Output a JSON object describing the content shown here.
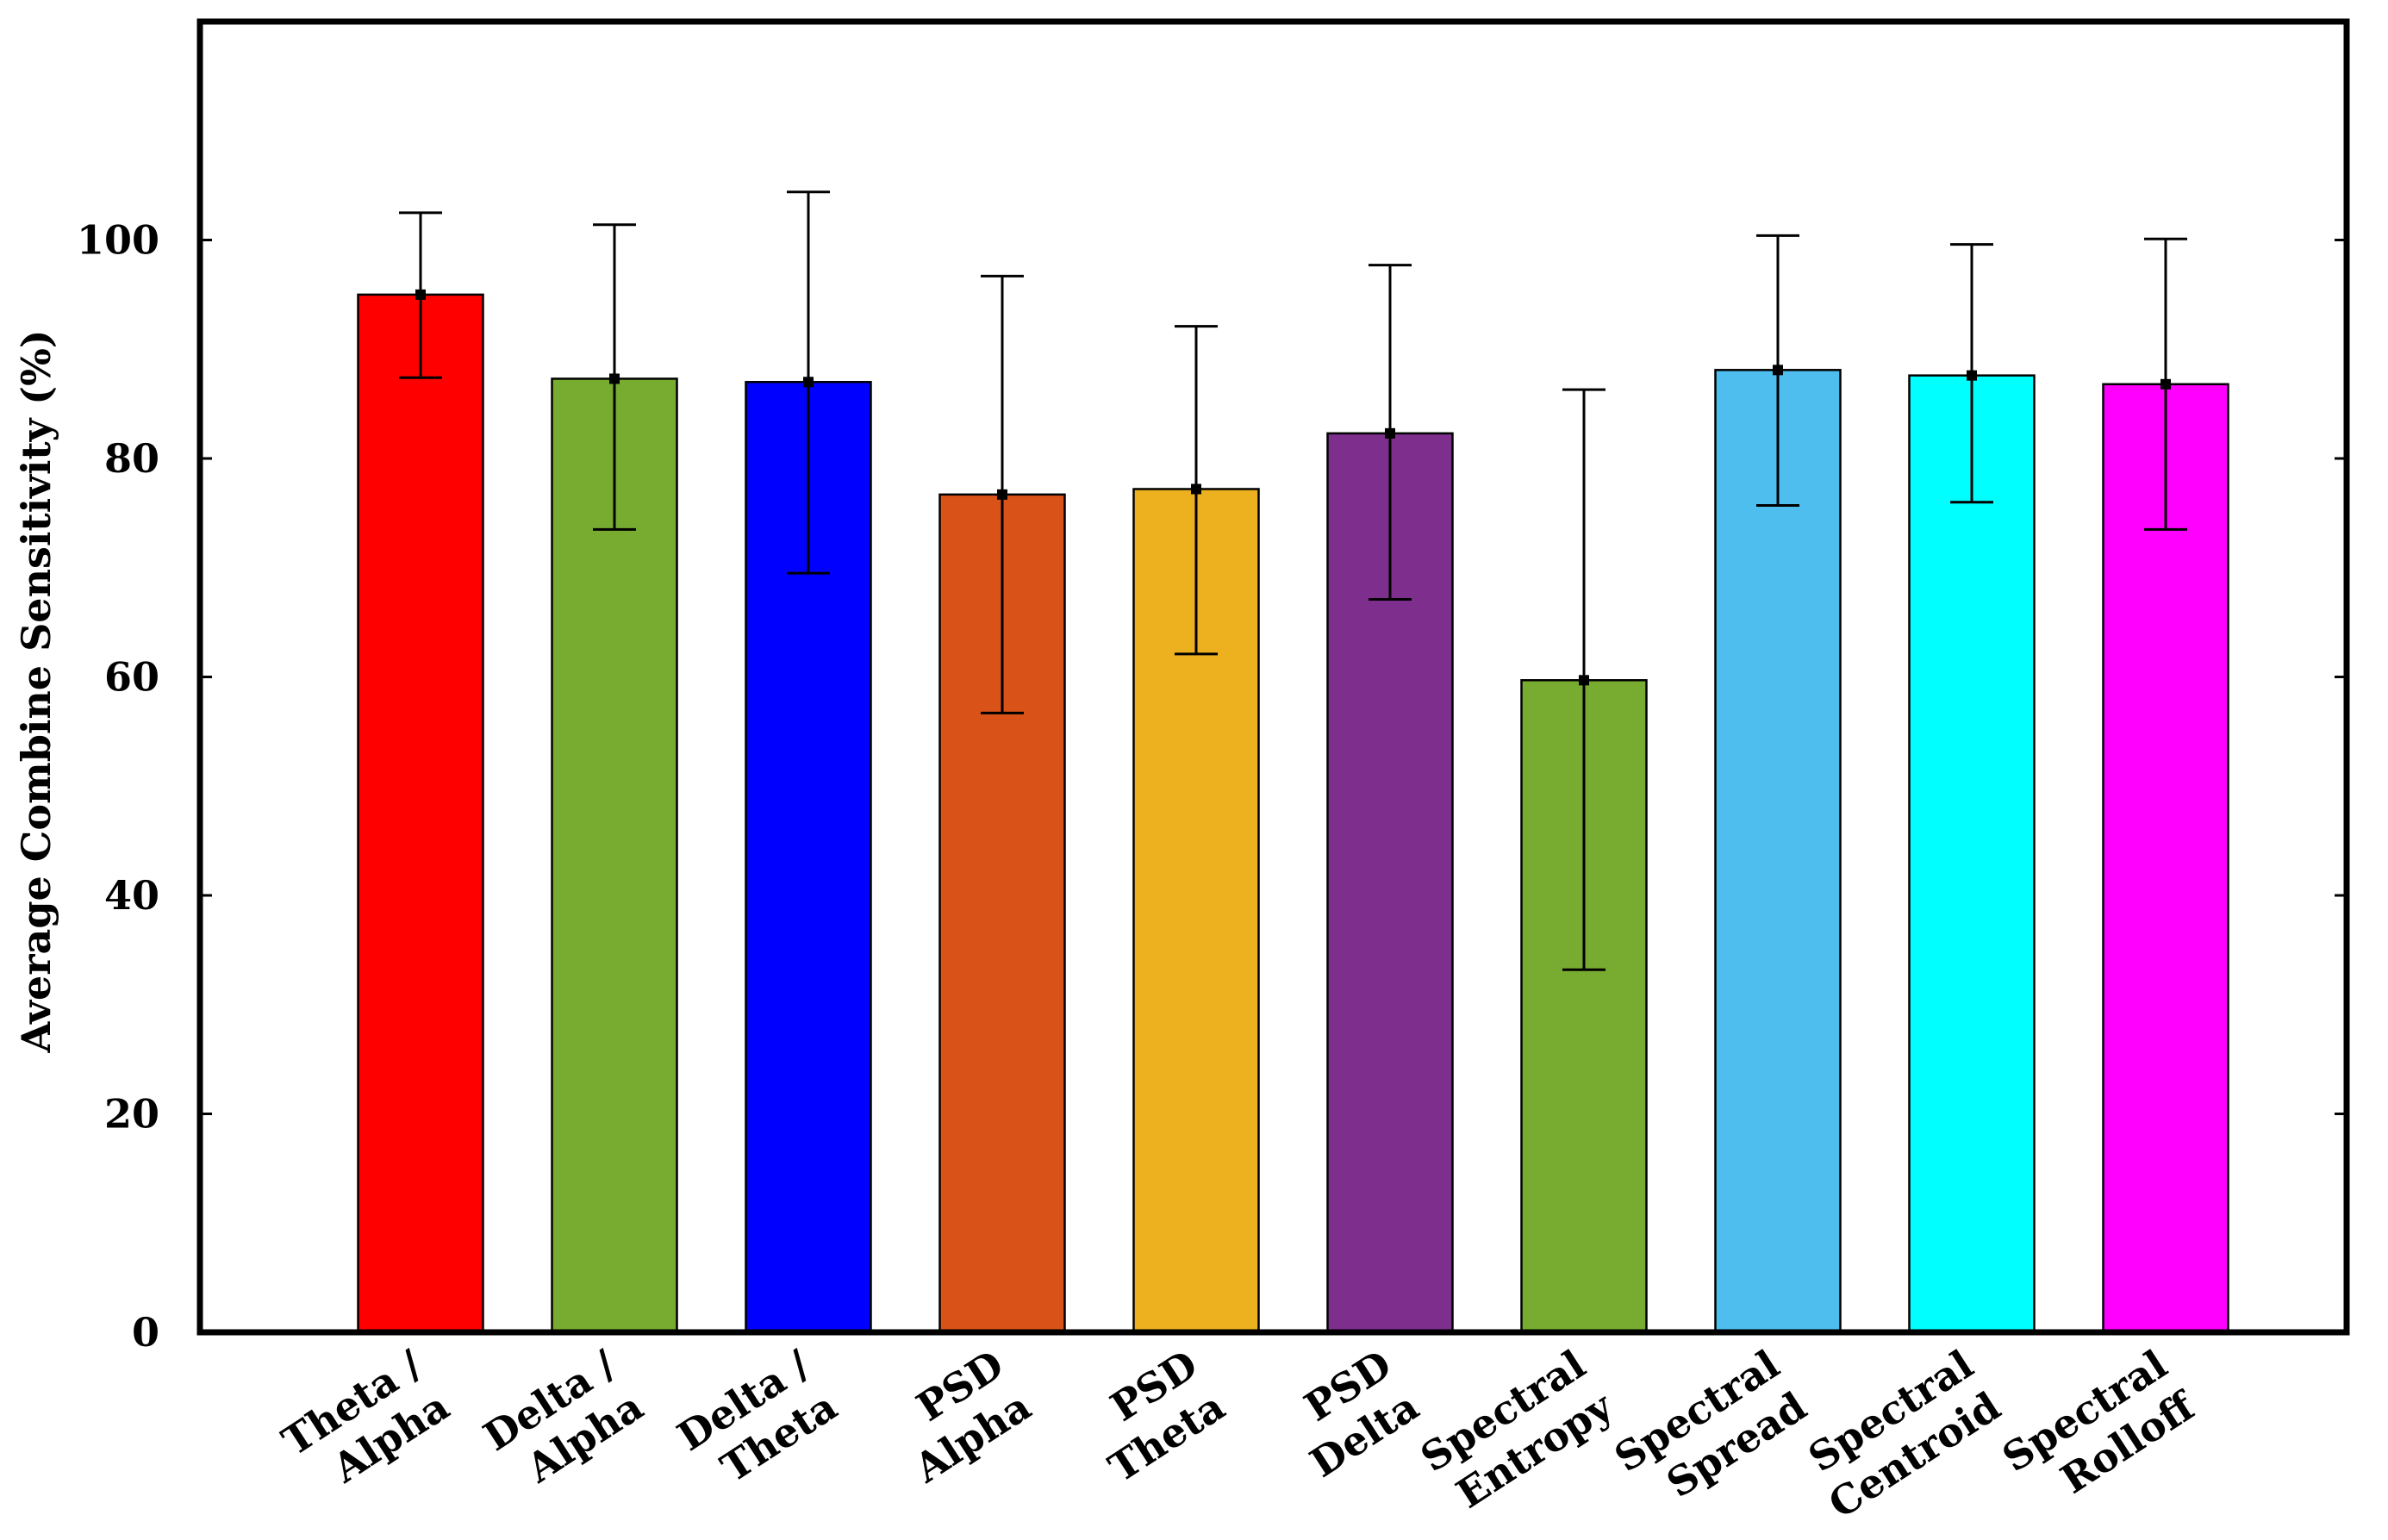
{
  "chart_data": {
    "type": "bar",
    "title": "",
    "xlabel": "",
    "ylabel": "Average Combine Sensitivity (%)",
    "ylim": [
      0,
      120
    ],
    "yticks": [
      0,
      20,
      40,
      60,
      80,
      100
    ],
    "grid": false,
    "categories": [
      [
        "Theta /",
        "Alpha"
      ],
      [
        "Delta /",
        "Alpha"
      ],
      [
        "Delta /",
        "Theta"
      ],
      [
        "PSD",
        "Alpha"
      ],
      [
        "PSD",
        "Theta"
      ],
      [
        "PSD",
        "Delta"
      ],
      [
        "Spectral",
        "Entropy"
      ],
      [
        "Spectral",
        "Spread"
      ],
      [
        "Spectral",
        "Centroid"
      ],
      [
        "Spectral",
        "Rolloff"
      ]
    ],
    "values": [
      95.0,
      87.3,
      87.0,
      76.7,
      77.2,
      82.3,
      59.7,
      88.1,
      87.6,
      86.8
    ],
    "error_low": [
      87.4,
      73.5,
      69.5,
      56.7,
      62.1,
      67.1,
      33.2,
      75.7,
      76.0,
      73.5
    ],
    "error_high": [
      102.5,
      101.4,
      104.4,
      96.7,
      92.1,
      97.7,
      86.3,
      100.4,
      99.6,
      100.1
    ],
    "colors": [
      "#ff0000",
      "#77ac30",
      "#0000ff",
      "#d95319",
      "#edb120",
      "#7e2f8e",
      "#77ac30",
      "#4dbeee",
      "#00ffff",
      "#ff00ff"
    ]
  }
}
